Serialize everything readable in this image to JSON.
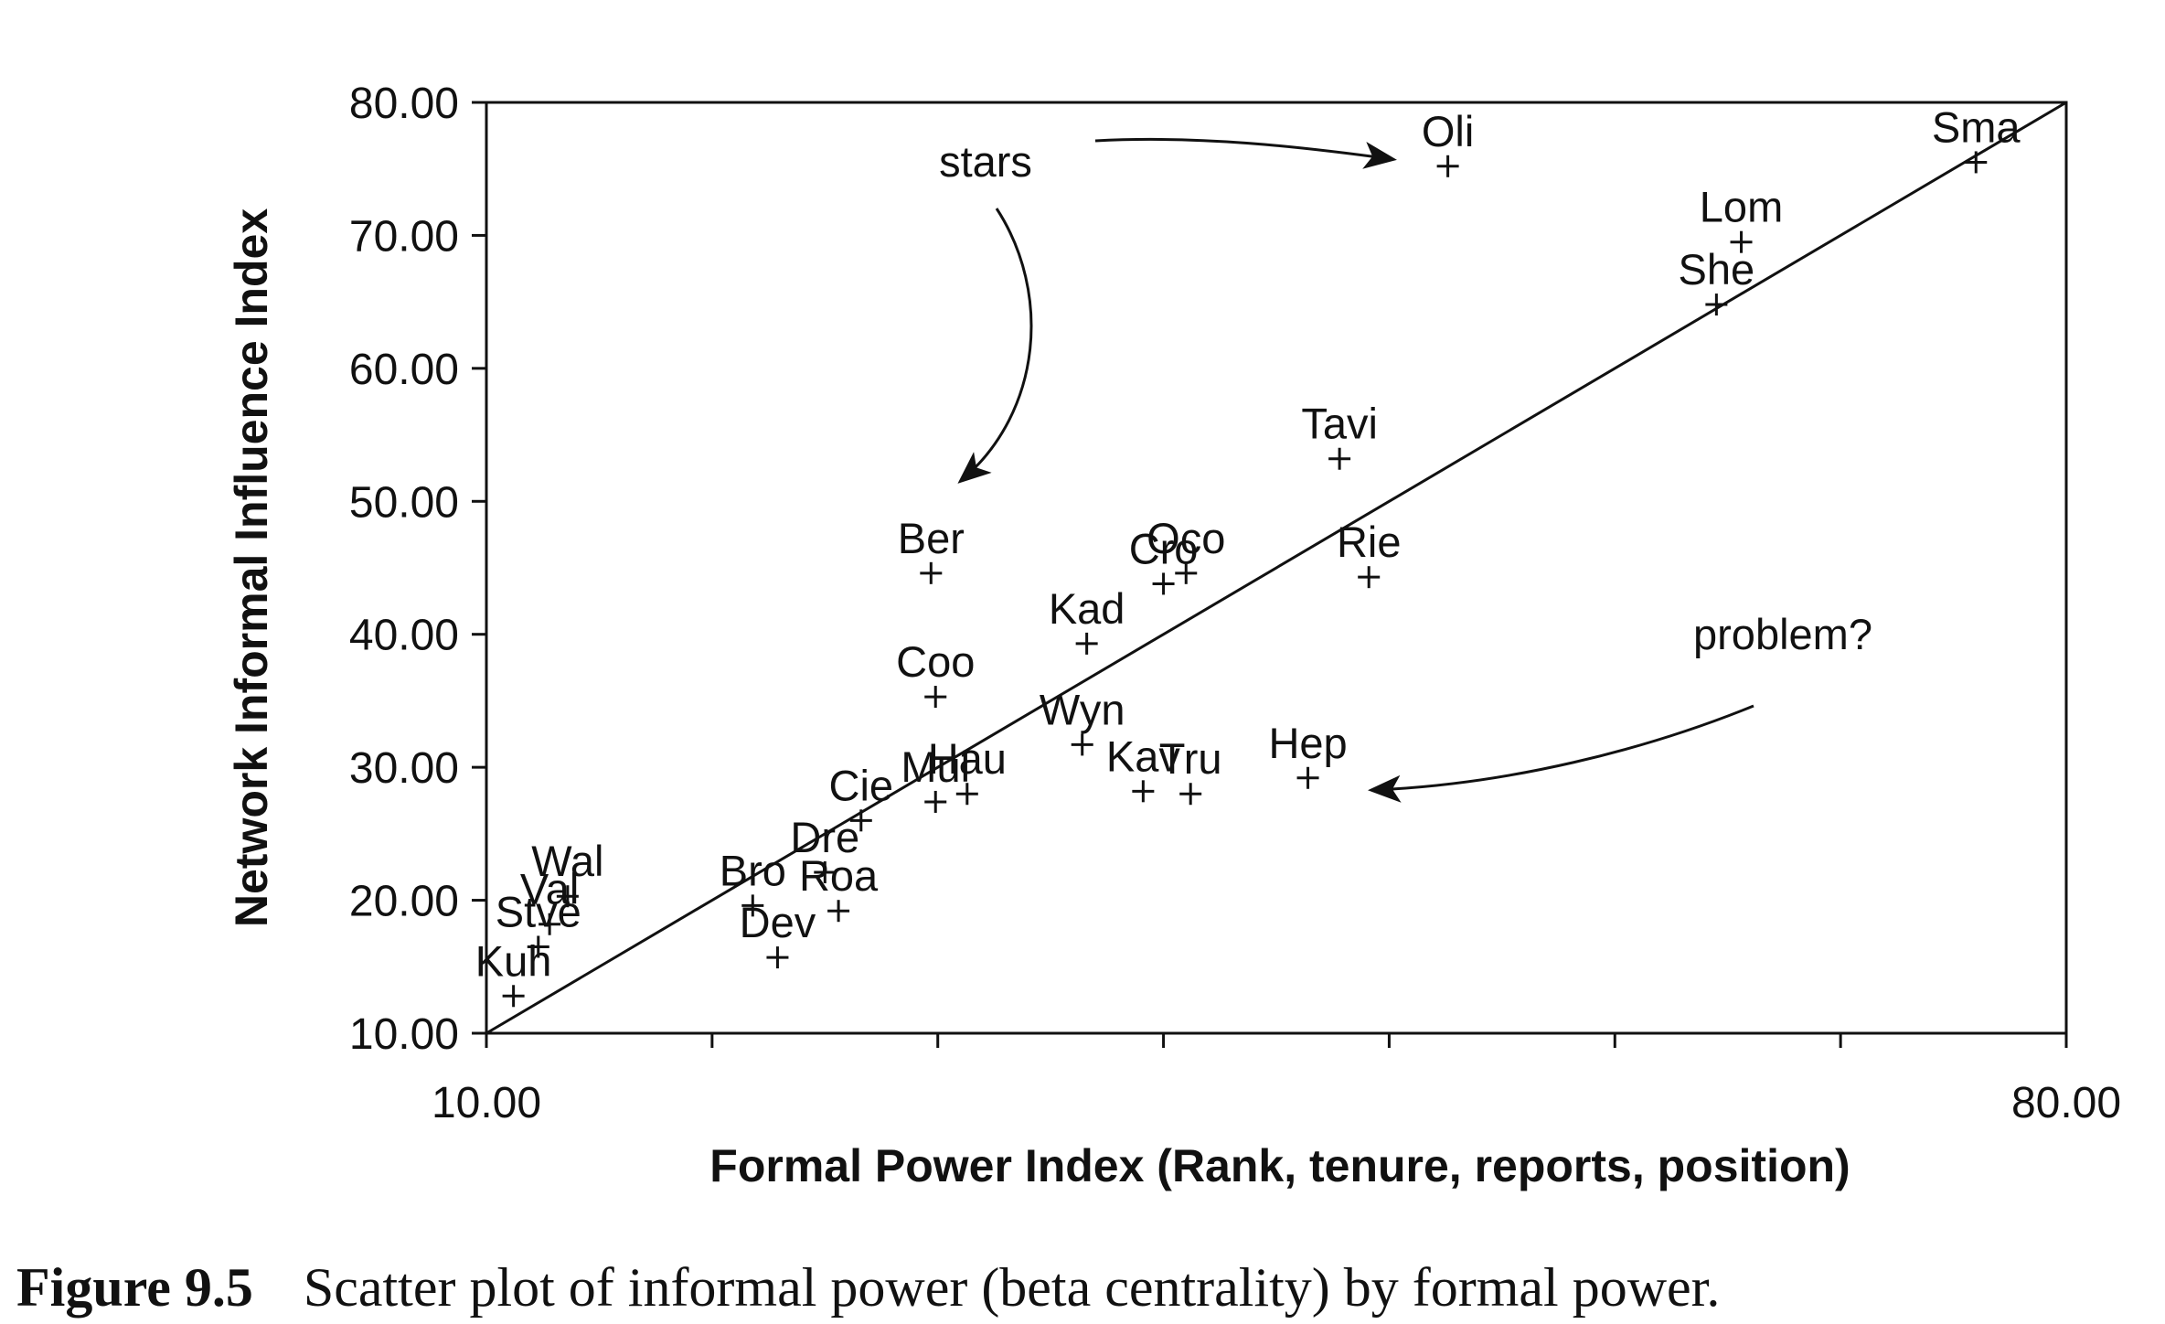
{
  "caption": {
    "label": "Figure 9.5",
    "text": "Scatter plot of informal power (beta centrality) by formal power."
  },
  "chart_data": {
    "type": "scatter",
    "xlabel": "Formal Power Index (Rank, tenure, reports, position)",
    "ylabel": "Network Informal Influence Index",
    "xlim": [
      10,
      80
    ],
    "ylim": [
      10,
      80
    ],
    "x_tick_labels": [
      "10.00",
      "80.00"
    ],
    "y_tick_labels": [
      "10.00",
      "20.00",
      "30.00",
      "40.00",
      "50.00",
      "60.00",
      "70.00",
      "80.00"
    ],
    "grid": false,
    "reference_line": {
      "from": [
        10,
        10
      ],
      "to": [
        80,
        80
      ]
    },
    "points": [
      {
        "label": "Oli",
        "x": 52.6,
        "y": 75.2
      },
      {
        "label": "Sma",
        "x": 76.0,
        "y": 75.5
      },
      {
        "label": "Lom",
        "x": 65.6,
        "y": 69.5
      },
      {
        "label": "She",
        "x": 64.5,
        "y": 64.8
      },
      {
        "label": "Tavi",
        "x": 47.8,
        "y": 53.2
      },
      {
        "label": "Ber",
        "x": 29.7,
        "y": 44.6
      },
      {
        "label": "Cro",
        "x": 40.0,
        "y": 43.8
      },
      {
        "label": "Oco",
        "x": 41.0,
        "y": 44.6
      },
      {
        "label": "Rie",
        "x": 49.1,
        "y": 44.3
      },
      {
        "label": "Kad",
        "x": 36.6,
        "y": 39.3
      },
      {
        "label": "Coo",
        "x": 29.9,
        "y": 35.3
      },
      {
        "label": "Wyn",
        "x": 36.4,
        "y": 31.7
      },
      {
        "label": "Kav",
        "x": 39.1,
        "y": 28.2
      },
      {
        "label": "Tru",
        "x": 41.2,
        "y": 28.0
      },
      {
        "label": "Hep",
        "x": 46.4,
        "y": 29.2
      },
      {
        "label": "Mul",
        "x": 29.9,
        "y": 27.4
      },
      {
        "label": "Hau",
        "x": 31.3,
        "y": 28.0
      },
      {
        "label": "Cie",
        "x": 26.6,
        "y": 26.0
      },
      {
        "label": "Dre",
        "x": 25.0,
        "y": 22.1
      },
      {
        "label": "Roa",
        "x": 25.6,
        "y": 19.2
      },
      {
        "label": "Bro",
        "x": 21.8,
        "y": 19.6
      },
      {
        "label": "Dev",
        "x": 22.9,
        "y": 15.7
      },
      {
        "label": "Wal",
        "x": 13.6,
        "y": 20.3
      },
      {
        "label": "Val",
        "x": 12.8,
        "y": 18.2
      },
      {
        "label": "Stve",
        "x": 12.3,
        "y": 16.5
      },
      {
        "label": "Kuh",
        "x": 11.2,
        "y": 12.8
      }
    ],
    "annotations": [
      {
        "text": "stars",
        "points_to": [
          "Oli",
          "Ber"
        ]
      },
      {
        "text": "problem?",
        "points_to": [
          "Hep"
        ]
      }
    ]
  }
}
